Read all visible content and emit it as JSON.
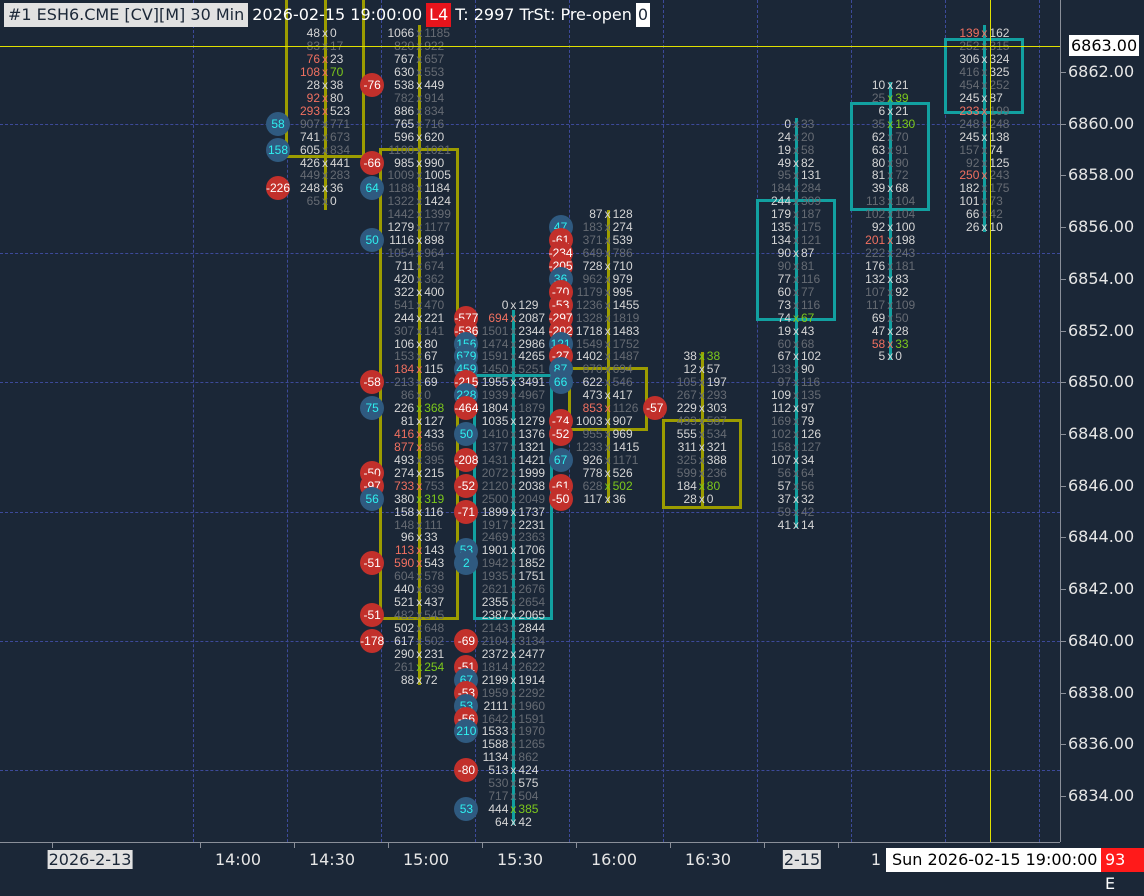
{
  "header": {
    "instrument": "#1 ESH6.CME [CV][M]  30 Min",
    "datetime": "2026-02-15 19:00:00",
    "level": "L4",
    "status": "T: 2997 TrSt: Pre-open",
    "counter": "0"
  },
  "colors": {
    "background": "#1b2737",
    "bear": "#9c9c00",
    "bull": "#12a0a0",
    "crosshair": "#e0e000",
    "negative_delta": "#c2302b",
    "positive_delta": "#2f5a80"
  },
  "price_axis": {
    "labels": [
      "6862.00",
      "6860.00",
      "6858.00",
      "6856.00",
      "6854.00",
      "6852.00",
      "6850.00",
      "6848.00",
      "6846.00",
      "6844.00",
      "6842.00",
      "6840.00",
      "6838.00",
      "6836.00",
      "6834.00"
    ],
    "current_price": "6863.00",
    "tick_size": 0.5
  },
  "time_axis": {
    "labels": [
      {
        "text": "2026-2-13",
        "hl": true
      },
      {
        "text": "14:00"
      },
      {
        "text": "14:30"
      },
      {
        "text": "15:00"
      },
      {
        "text": "15:30"
      },
      {
        "text": "16:00"
      },
      {
        "text": "16:30"
      },
      {
        "text": "2-15",
        "hl": true
      },
      {
        "text": "1"
      }
    ],
    "cursor_time": "Sun 2026-02-15  19:00:00",
    "counter": "93 E"
  },
  "columns": [
    {
      "time": "14:15",
      "color": "bear",
      "top": 6863.5,
      "body": [
        6865.2,
        6858.67
      ],
      "wick": [
        6865.2,
        6856.66
      ],
      "rows": [
        [
          "48",
          "0",
          "nn"
        ],
        [
          "83",
          "17",
          "dd"
        ],
        [
          "76",
          "23",
          "rn"
        ],
        [
          "108",
          "70",
          "rg"
        ],
        [
          "28",
          "38",
          "nn"
        ],
        [
          "92",
          "80",
          "rn"
        ],
        [
          "293",
          "523",
          "rn"
        ],
        [
          "907",
          "771",
          "dd",
          "58"
        ],
        [
          "741",
          "673",
          "nd"
        ],
        [
          "605",
          "834",
          "nd",
          "158"
        ],
        [
          "426",
          "441",
          "nn"
        ],
        [
          "449",
          "283",
          "dd"
        ],
        [
          "248",
          "36",
          "nn",
          "-226"
        ],
        [
          "65",
          "0",
          "dn"
        ]
      ]
    },
    {
      "time": "14:45",
      "color": "bear",
      "top": 6863.5,
      "body": [
        6859.06,
        6840.81
      ],
      "wick": [
        6863.82,
        6838.3
      ],
      "rows": [
        [
          "1066",
          "1185",
          "nd"
        ],
        [
          "820",
          "922",
          "dd"
        ],
        [
          "767",
          "657",
          "nd"
        ],
        [
          "630",
          "553",
          "nd"
        ],
        [
          "538",
          "449",
          "nn",
          "-76"
        ],
        [
          "782",
          "914",
          "dd"
        ],
        [
          "886",
          "834",
          "nd"
        ],
        [
          "765",
          "716",
          "nd"
        ],
        [
          "596",
          "620",
          "nn"
        ],
        [
          "1100",
          "1021",
          "dd"
        ],
        [
          "985",
          "990",
          "nn",
          "-66"
        ],
        [
          "1009",
          "1005",
          "dn"
        ],
        [
          "1188",
          "1184",
          "dn",
          "64"
        ],
        [
          "1322",
          "1424",
          "dn"
        ],
        [
          "1442",
          "1399",
          "dd"
        ],
        [
          "1279",
          "1177",
          "nd"
        ],
        [
          "1116",
          "898",
          "nn",
          "50"
        ],
        [
          "1054",
          "964",
          "dd"
        ],
        [
          "711",
          "674",
          "nd"
        ],
        [
          "420",
          "362",
          "nd"
        ],
        [
          "322",
          "400",
          "nn"
        ],
        [
          "541",
          "470",
          "dd"
        ],
        [
          "244",
          "221",
          "nn"
        ],
        [
          "307",
          "141",
          "dd"
        ],
        [
          "106",
          "80",
          "nn"
        ],
        [
          "153",
          "67",
          "dn"
        ],
        [
          "184",
          "115",
          "rn"
        ],
        [
          "213",
          "69",
          "dn",
          "-58"
        ],
        [
          "86",
          "0",
          "dd"
        ],
        [
          "226",
          "368",
          "ng",
          "75"
        ],
        [
          "81",
          "127",
          "nn"
        ],
        [
          "416",
          "433",
          "rn"
        ],
        [
          "877",
          "856",
          "rd"
        ],
        [
          "493",
          "395",
          "nd"
        ],
        [
          "274",
          "215",
          "nn",
          "-50"
        ],
        [
          "733",
          "753",
          "rd",
          "-97"
        ],
        [
          "380",
          "319",
          "ng",
          "56"
        ],
        [
          "158",
          "116",
          "nn"
        ],
        [
          "148",
          "111",
          "dd"
        ],
        [
          "96",
          "33",
          "nn"
        ],
        [
          "113",
          "143",
          "rn"
        ],
        [
          "590",
          "543",
          "rn",
          "-51"
        ],
        [
          "604",
          "578",
          "dd"
        ],
        [
          "440",
          "639",
          "nd"
        ],
        [
          "521",
          "437",
          "nn"
        ],
        [
          "482",
          "545",
          "dd",
          "-51"
        ],
        [
          "502",
          "648",
          "nd"
        ],
        [
          "617",
          "502",
          "nd",
          "-178"
        ],
        [
          "290",
          "231",
          "nn"
        ],
        [
          "261",
          "254",
          "dg"
        ],
        [
          "88",
          "72",
          "nn"
        ]
      ]
    },
    {
      "time": "15:15",
      "color": "bull",
      "top": 6853.0,
      "body": [
        6850.32,
        6840.81
      ],
      "wick": [
        6852.8,
        6832.88
      ],
      "rows": [
        [
          "0",
          "129",
          "nn"
        ],
        [
          "694",
          "2087",
          "rn",
          "-577"
        ],
        [
          "1501",
          "2344",
          "dn",
          "-536"
        ],
        [
          "1474",
          "2986",
          "dn",
          "156"
        ],
        [
          "1591",
          "4265",
          "dn",
          "679"
        ],
        [
          "1450",
          "5251",
          "dd",
          "459"
        ],
        [
          "1955",
          "3491",
          "nn",
          "-215"
        ],
        [
          "1939",
          "4967",
          "dd",
          "228"
        ],
        [
          "1804",
          "1879",
          "nd",
          "-464"
        ],
        [
          "1035",
          "1279",
          "nn"
        ],
        [
          "1410",
          "1376",
          "dn",
          "50"
        ],
        [
          "1377",
          "1321",
          "dn"
        ],
        [
          "1431",
          "1421",
          "dn",
          "-208"
        ],
        [
          "2072",
          "1999",
          "dn"
        ],
        [
          "2120",
          "2038",
          "dn",
          "-52"
        ],
        [
          "2500",
          "2049",
          "dd"
        ],
        [
          "1899",
          "1737",
          "nn",
          "-71"
        ],
        [
          "1917",
          "2231",
          "dn"
        ],
        [
          "2469",
          "2363",
          "dd"
        ],
        [
          "1901",
          "1706",
          "nn",
          "53"
        ],
        [
          "1942",
          "1852",
          "dn",
          "2"
        ],
        [
          "1935",
          "1751",
          "dn"
        ],
        [
          "2621",
          "2676",
          "dd"
        ],
        [
          "2355",
          "2654",
          "nd"
        ],
        [
          "2387",
          "2065",
          "nn"
        ],
        [
          "2143",
          "2844",
          "dn"
        ],
        [
          "2104",
          "3134",
          "dd",
          "-69"
        ],
        [
          "2372",
          "2477",
          "nn"
        ],
        [
          "1814",
          "2622",
          "dd",
          "-51"
        ],
        [
          "2199",
          "1914",
          "nn",
          "67"
        ],
        [
          "1959",
          "2292",
          "dd",
          "-53"
        ],
        [
          "2111",
          "1960",
          "nd",
          "53"
        ],
        [
          "1642",
          "1591",
          "dd",
          "-56"
        ],
        [
          "1533",
          "1970",
          "nd",
          "210"
        ],
        [
          "1588",
          "1265",
          "nd"
        ],
        [
          "1134",
          "862",
          "nd"
        ],
        [
          "513",
          "424",
          "nn",
          "-80"
        ],
        [
          "530",
          "575",
          "dn"
        ],
        [
          "717",
          "504",
          "dd"
        ],
        [
          "444",
          "385",
          "ng",
          "53"
        ],
        [
          "64",
          "42",
          "nn"
        ]
      ]
    },
    {
      "time": "15:45",
      "color": "bear",
      "top": 6856.5,
      "body": [
        6850.59,
        6848.12
      ],
      "wick": [
        6856.66,
        6845.33
      ],
      "rows": [
        [
          "87",
          "128",
          "nn"
        ],
        [
          "183",
          "274",
          "dn",
          "47"
        ],
        [
          "371",
          "539",
          "dn",
          "-61"
        ],
        [
          "649",
          "786",
          "dd",
          "-234"
        ],
        [
          "728",
          "710",
          "nn",
          "-205"
        ],
        [
          "962",
          "979",
          "dn",
          "36"
        ],
        [
          "1179",
          "995",
          "dn",
          "-70"
        ],
        [
          "1236",
          "1455",
          "dn",
          "-53"
        ],
        [
          "1328",
          "1819",
          "dd",
          "-297"
        ],
        [
          "1718",
          "1483",
          "nn",
          "-202"
        ],
        [
          "1549",
          "1752",
          "dd",
          "121"
        ],
        [
          "1402",
          "1487",
          "nd",
          "-27"
        ],
        [
          "870",
          "694",
          "dd",
          "87"
        ],
        [
          "622",
          "546",
          "nd",
          "66"
        ],
        [
          "473",
          "417",
          "nn"
        ],
        [
          "853",
          "1126",
          "rd"
        ],
        [
          "1003",
          "907",
          "nn",
          "-74"
        ],
        [
          "955",
          "969",
          "dn",
          "-52"
        ],
        [
          "1233",
          "1415",
          "dn"
        ],
        [
          "926",
          "1171",
          "nd",
          "67"
        ],
        [
          "778",
          "526",
          "nn"
        ],
        [
          "628",
          "502",
          "dg",
          "-61"
        ],
        [
          "117",
          "36",
          "nn",
          "-50"
        ]
      ]
    },
    {
      "time": "16:15",
      "color": "bear",
      "top": 6851.0,
      "body": [
        6848.58,
        6845.1
      ],
      "wick": [
        6851.17,
        6845.1
      ],
      "rows": [
        [
          "38",
          "38",
          "ng"
        ],
        [
          "12",
          "57",
          "nn"
        ],
        [
          "105",
          "197",
          "dn"
        ],
        [
          "267",
          "293",
          "dd"
        ],
        [
          "229",
          "303",
          "nn",
          "-57"
        ],
        [
          "493",
          "587",
          "dd"
        ],
        [
          "555",
          "534",
          "nd"
        ],
        [
          "311",
          "321",
          "nn"
        ],
        [
          "325",
          "388",
          "dn"
        ],
        [
          "599",
          "236",
          "dd"
        ],
        [
          "184",
          "80",
          "ng"
        ],
        [
          "28",
          "0",
          "nn"
        ]
      ]
    },
    {
      "time": "16:45",
      "color": "bull",
      "top": 6860.0,
      "body": [
        6857.09,
        6852.37
      ],
      "wick": [
        6860.22,
        6844.37
      ],
      "rows": [
        [
          "0",
          "33",
          "nd"
        ],
        [
          "24",
          "20",
          "nd"
        ],
        [
          "19",
          "58",
          "nd"
        ],
        [
          "49",
          "82",
          "nn"
        ],
        [
          "95",
          "131",
          "dn"
        ],
        [
          "184",
          "284",
          "dd"
        ],
        [
          "244",
          "309",
          "nd"
        ],
        [
          "179",
          "187",
          "nd"
        ],
        [
          "135",
          "175",
          "nd"
        ],
        [
          "134",
          "121",
          "nd"
        ],
        [
          "90",
          "87",
          "nn"
        ],
        [
          "90",
          "81",
          "dd"
        ],
        [
          "77",
          "116",
          "nd"
        ],
        [
          "60",
          "77",
          "nd"
        ],
        [
          "73",
          "116",
          "nd"
        ],
        [
          "74",
          "67",
          "ng"
        ],
        [
          "19",
          "43",
          "nn"
        ],
        [
          "60",
          "68",
          "dd"
        ],
        [
          "67",
          "102",
          "nn"
        ],
        [
          "133",
          "90",
          "dn"
        ],
        [
          "97",
          "116",
          "dd"
        ],
        [
          "109",
          "135",
          "nd"
        ],
        [
          "112",
          "97",
          "nn"
        ],
        [
          "169",
          "79",
          "dn"
        ],
        [
          "102",
          "126",
          "dn"
        ],
        [
          "158",
          "127",
          "dd"
        ],
        [
          "107",
          "34",
          "nn"
        ],
        [
          "56",
          "64",
          "dd"
        ],
        [
          "57",
          "56",
          "nd"
        ],
        [
          "37",
          "32",
          "nn"
        ],
        [
          "59",
          "42",
          "dd"
        ],
        [
          "41",
          "14",
          "nn"
        ]
      ]
    },
    {
      "time": "18:30",
      "color": "bull",
      "top": 6861.5,
      "body": [
        6860.84,
        6856.62
      ],
      "wick": [
        6861.61,
        6850.86
      ],
      "rows": [
        [
          "10",
          "21",
          "nn"
        ],
        [
          "25",
          "39",
          "dg"
        ],
        [
          "6",
          "21",
          "nn"
        ],
        [
          "35",
          "130",
          "dg"
        ],
        [
          "62",
          "70",
          "nd"
        ],
        [
          "63",
          "91",
          "nd"
        ],
        [
          "80",
          "90",
          "nd"
        ],
        [
          "81",
          "72",
          "nd"
        ],
        [
          "39",
          "68",
          "nn"
        ],
        [
          "113",
          "104",
          "dd"
        ],
        [
          "102",
          "104",
          "dd"
        ],
        [
          "92",
          "100",
          "nn"
        ],
        [
          "201",
          "198",
          "rn"
        ],
        [
          "222",
          "243",
          "dd"
        ],
        [
          "176",
          "181",
          "nd"
        ],
        [
          "132",
          "83",
          "nn"
        ],
        [
          "107",
          "92",
          "dn"
        ],
        [
          "117",
          "109",
          "dd"
        ],
        [
          "69",
          "50",
          "nd"
        ],
        [
          "47",
          "28",
          "nn"
        ],
        [
          "58",
          "33",
          "rg"
        ],
        [
          "5",
          "0",
          "nn"
        ]
      ]
    },
    {
      "time": "19:00",
      "color": "bull",
      "top": 6863.5,
      "body": [
        6863.31,
        6860.38
      ],
      "wick": [
        6863.82,
        6855.81
      ],
      "rows": [
        [
          "139",
          "162",
          "rn"
        ],
        [
          "252",
          "315",
          "dd"
        ],
        [
          "306",
          "324",
          "nn"
        ],
        [
          "416",
          "325",
          "dn"
        ],
        [
          "454",
          "252",
          "dd"
        ],
        [
          "245",
          "87",
          "nn"
        ],
        [
          "233",
          "199",
          "rd"
        ],
        [
          "248",
          "248",
          "dd"
        ],
        [
          "245",
          "138",
          "nn"
        ],
        [
          "157",
          "74",
          "dn"
        ],
        [
          "92",
          "125",
          "dn"
        ],
        [
          "250",
          "243",
          "rd"
        ],
        [
          "182",
          "175",
          "nd"
        ],
        [
          "101",
          "73",
          "nd"
        ],
        [
          "66",
          "42",
          "nd"
        ],
        [
          "26",
          "10",
          "nn"
        ]
      ]
    }
  ]
}
